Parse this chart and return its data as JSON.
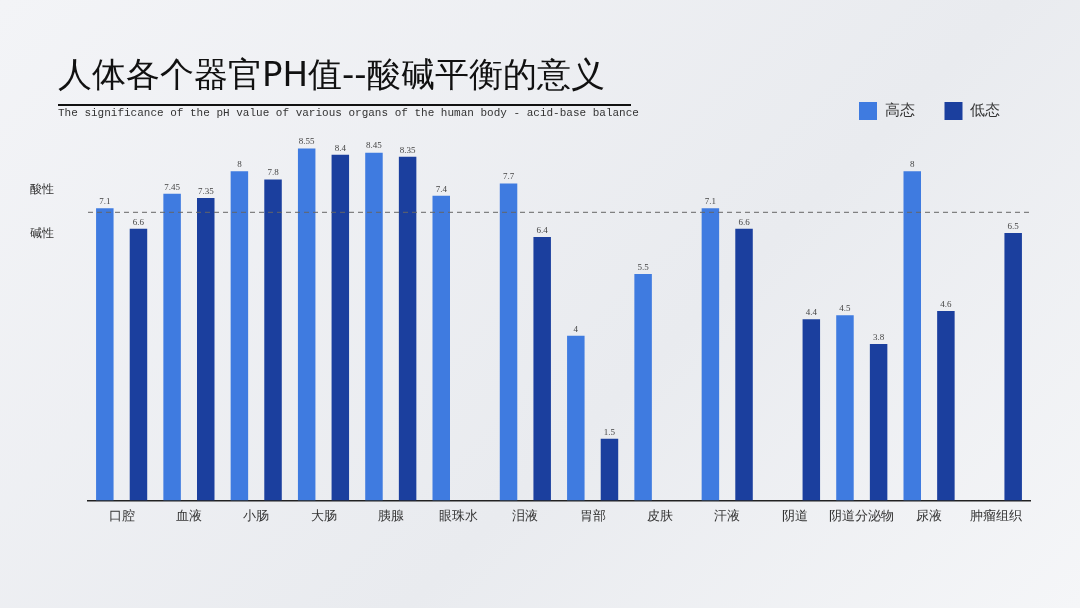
{
  "chart_data": {
    "type": "bar",
    "title": "人体各个器官PH值--酸碱平衡的意义",
    "subtitle": "The significance of the pH value of various organs of the human body - acid-base balance",
    "categories": [
      "口腔",
      "血液",
      "小肠",
      "大肠",
      "胰腺",
      "眼珠水",
      "泪液",
      "胃部",
      "皮肤",
      "汗液",
      "阴道",
      "阴道分泌物",
      "尿液",
      "肿瘤组织"
    ],
    "series": [
      {
        "name": "高态",
        "color": "#3f7be0",
        "values": [
          7.1,
          7.45,
          8,
          8.55,
          8.45,
          7.4,
          7.7,
          4,
          5.5,
          7.1,
          null,
          4.5,
          8,
          null
        ]
      },
      {
        "name": "低态",
        "color": "#1b3f9e",
        "values": [
          6.6,
          7.35,
          7.8,
          8.4,
          8.35,
          null,
          6.4,
          1.5,
          null,
          6.6,
          4.4,
          3.8,
          4.6,
          6.5
        ]
      }
    ],
    "tick_labels": "x",
    "grid": false,
    "legend": "top right",
    "data_labels": true,
    "ref_lines": [
      {
        "axis": "y",
        "value": 7,
        "color": "#666666",
        "line_style": "dashed"
      }
    ],
    "annotations": [
      "酸性",
      "碱性"
    ]
  }
}
